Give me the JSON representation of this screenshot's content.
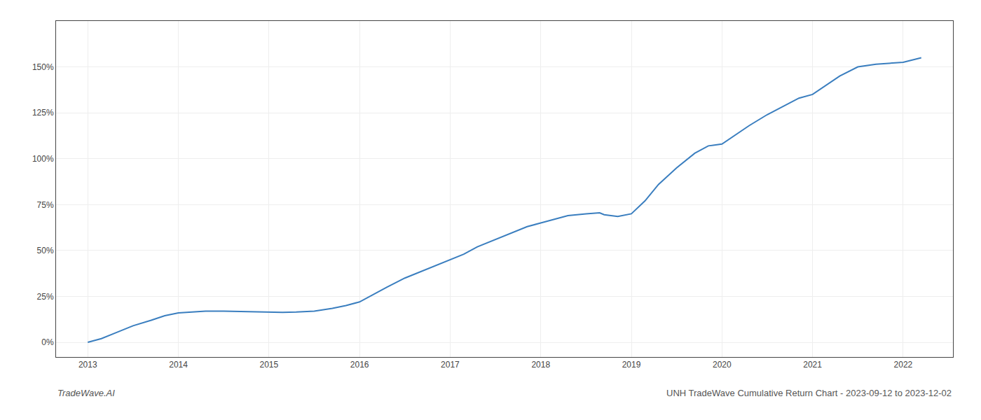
{
  "chart_data": {
    "type": "line",
    "annotations": [
      "TradeWave.AI",
      "UNH TradeWave Cumulative Return Chart - 2023-09-12 to 2023-12-02"
    ],
    "x": [
      2013.0,
      2013.15,
      2013.3,
      2013.5,
      2013.7,
      2013.85,
      2014.0,
      2014.15,
      2014.3,
      2014.5,
      2014.7,
      2014.85,
      2015.0,
      2015.15,
      2015.3,
      2015.5,
      2015.7,
      2015.85,
      2016.0,
      2016.15,
      2016.3,
      2016.5,
      2016.7,
      2016.85,
      2017.0,
      2017.15,
      2017.3,
      2017.5,
      2017.7,
      2017.85,
      2018.0,
      2018.15,
      2018.3,
      2018.5,
      2018.65,
      2018.7,
      2018.85,
      2019.0,
      2019.15,
      2019.3,
      2019.5,
      2019.7,
      2019.85,
      2020.0,
      2020.15,
      2020.3,
      2020.5,
      2020.7,
      2020.85,
      2021.0,
      2021.15,
      2021.3,
      2021.5,
      2021.7,
      2022.0,
      2022.2
    ],
    "values": [
      0.0,
      2.0,
      5.0,
      9.0,
      12.0,
      14.5,
      16.0,
      16.5,
      17.0,
      17.0,
      16.8,
      16.5,
      16.5,
      16.3,
      16.5,
      17.0,
      18.5,
      20.0,
      22.0,
      26.0,
      30.0,
      35.0,
      39.0,
      42.0,
      45.0,
      48.0,
      52.0,
      56.0,
      60.0,
      63.0,
      65.0,
      67.0,
      69.0,
      70.0,
      70.5,
      69.5,
      68.5,
      70.0,
      77.0,
      86.0,
      95.0,
      103.0,
      107.0,
      108.0,
      113.0,
      118.0,
      124.0,
      129.0,
      133.0,
      135.0,
      140.0,
      145.0,
      150.0,
      151.5,
      152.5,
      155.0
    ],
    "color": "#3a7ebf",
    "xlim": [
      2012.65,
      2022.55
    ],
    "ylim": [
      -8,
      175
    ],
    "xticks": [
      2013,
      2014,
      2015,
      2016,
      2017,
      2018,
      2019,
      2020,
      2021,
      2022
    ],
    "yticks": [
      {
        "value": 0,
        "label": "0%"
      },
      {
        "value": 25,
        "label": "25%"
      },
      {
        "value": 50,
        "label": "50%"
      },
      {
        "value": 75,
        "label": "75%"
      },
      {
        "value": 100,
        "label": "100%"
      },
      {
        "value": 125,
        "label": "125%"
      },
      {
        "value": 150,
        "label": "150%"
      }
    ],
    "grid": true
  }
}
